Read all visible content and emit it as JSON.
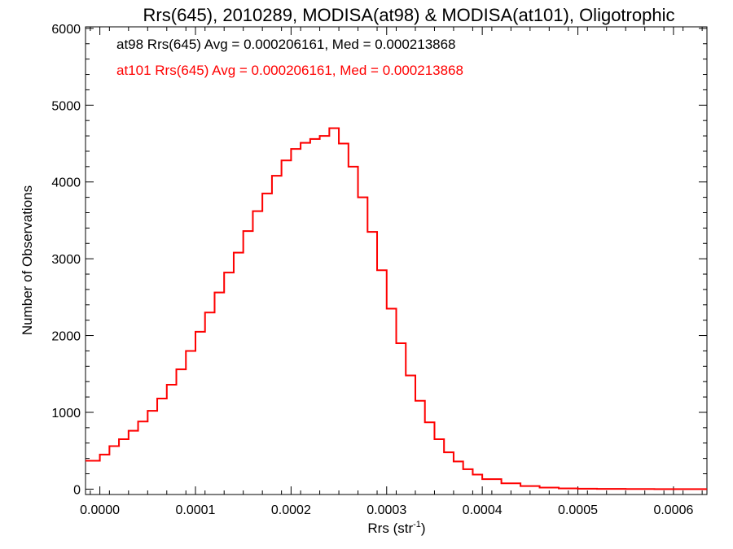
{
  "chart_data": {
    "type": "line",
    "step": true,
    "title": "Rrs(645), 2010289, MODISA(at98) & MODISA(at101), Oligotrophic",
    "xlabel_main": "Rrs (str",
    "xlabel_sup": "-1",
    "xlabel_close": ")",
    "ylabel": "Number of Observations",
    "xlim": [
      -1.5e-05,
      0.000635
    ],
    "ylim": [
      -70,
      6020
    ],
    "x_ticks": [
      0.0,
      0.0001,
      0.0002,
      0.0003,
      0.0004,
      0.0005,
      0.0006
    ],
    "x_tick_labels": [
      "0.0000",
      "0.0001",
      "0.0002",
      "0.0003",
      "0.0004",
      "0.0005",
      "0.0006"
    ],
    "y_ticks": [
      0,
      1000,
      2000,
      3000,
      4000,
      5000,
      6000
    ],
    "y_tick_labels": [
      "0",
      "1000",
      "2000",
      "3000",
      "4000",
      "5000",
      "6000"
    ],
    "annotations": [
      {
        "text": "at98 Rrs(645) Avg = 0.000206161, Med = 0.000213868",
        "color": "#000000"
      },
      {
        "text": "at101 Rrs(645) Avg = 0.000206161, Med = 0.000213868",
        "color": "#ff0000"
      }
    ],
    "series": [
      {
        "name": "at98",
        "color": "#000000"
      },
      {
        "name": "at101",
        "color": "#ff0000"
      }
    ],
    "x": [
      -1.5e-05,
      0.0,
      1e-05,
      2e-05,
      3e-05,
      4e-05,
      5e-05,
      6e-05,
      7e-05,
      8e-05,
      9e-05,
      0.0001,
      0.00011,
      0.00012,
      0.00013,
      0.00014,
      0.00015,
      0.00016,
      0.00017,
      0.00018,
      0.00019,
      0.0002,
      0.00021,
      0.00022,
      0.00023,
      0.00024,
      0.00025,
      0.00026,
      0.00027,
      0.00028,
      0.00029,
      0.0003,
      0.00031,
      0.00032,
      0.00033,
      0.00034,
      0.00035,
      0.00036,
      0.00037,
      0.00038,
      0.00039,
      0.0004,
      0.00042,
      0.00044,
      0.00046,
      0.00048,
      0.0005,
      0.00052,
      0.00055,
      0.00058,
      0.00061,
      0.000635
    ],
    "y": [
      370,
      450,
      560,
      650,
      760,
      880,
      1020,
      1180,
      1360,
      1560,
      1800,
      2050,
      2300,
      2560,
      2820,
      3080,
      3360,
      3620,
      3850,
      4080,
      4280,
      4430,
      4510,
      4560,
      4600,
      4700,
      4500,
      4200,
      3800,
      3350,
      2850,
      2350,
      1900,
      1480,
      1150,
      870,
      650,
      480,
      360,
      260,
      190,
      130,
      75,
      40,
      20,
      10,
      5,
      3,
      1,
      0,
      0,
      0
    ]
  }
}
